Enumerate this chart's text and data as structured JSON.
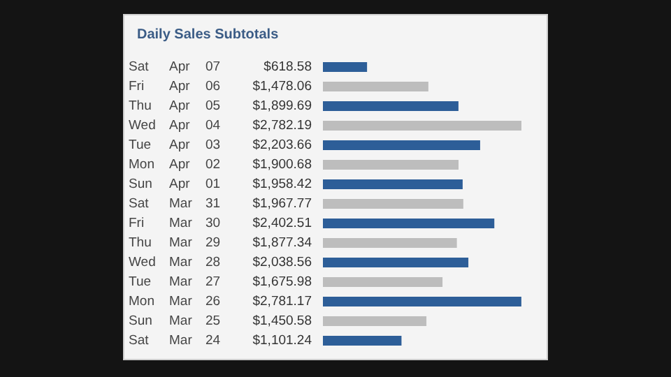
{
  "chart_data": {
    "type": "bar",
    "orientation": "horizontal",
    "title": "Daily Sales Subtotals",
    "categories": [
      "Sat Apr 07",
      "Fri Apr 06",
      "Thu Apr 05",
      "Wed Apr 04",
      "Tue Apr 03",
      "Mon Apr 02",
      "Sun Apr 01",
      "Sat Mar 31",
      "Fri Mar 30",
      "Thu Mar 29",
      "Wed Mar 28",
      "Tue Mar 27",
      "Mon Mar 26",
      "Sun Mar 25",
      "Sat Mar 24"
    ],
    "values": [
      618.58,
      1478.06,
      1899.69,
      2782.19,
      2203.66,
      1900.68,
      1958.42,
      1967.77,
      2402.51,
      1877.34,
      2038.56,
      1675.98,
      2781.17,
      1450.58,
      1101.24
    ],
    "value_labels": [
      "$618.58",
      "$1,478.06",
      "$1,899.69",
      "$2,782.19",
      "$2,203.66",
      "$1,900.68",
      "$1,958.42",
      "$1,967.77",
      "$2,402.51",
      "$1,877.34",
      "$2,038.56",
      "$1,675.98",
      "$2,781.17",
      "$1,450.58",
      "$1,101.24"
    ],
    "colors": [
      "#2d5e98",
      "#bdbdbd",
      "#2d5e98",
      "#bdbdbd",
      "#2d5e98",
      "#bdbdbd",
      "#2d5e98",
      "#bdbdbd",
      "#2d5e98",
      "#bdbdbd",
      "#2d5e98",
      "#bdbdbd",
      "#2d5e98",
      "#bdbdbd",
      "#2d5e98"
    ]
  }
}
